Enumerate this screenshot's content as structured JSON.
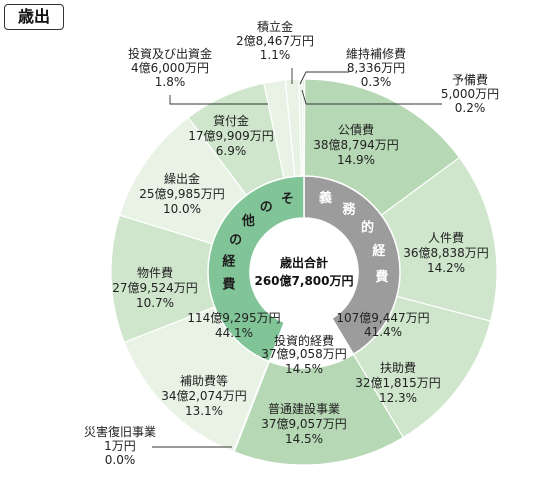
{
  "title": "歳出",
  "chart_data": {
    "type": "pie",
    "variant": "donut-two-ring",
    "center": {
      "line1": "歳出合計",
      "line2": "260億7,800万円"
    },
    "outer": [
      {
        "name": "公債費",
        "amount": "38億8,794万円",
        "percent": "14.9%",
        "value": 14.9,
        "color": "#b6d8b4"
      },
      {
        "name": "人件費",
        "amount": "36億8,838万円",
        "percent": "14.2%",
        "value": 14.2,
        "color": "#cfe6cc"
      },
      {
        "name": "扶助費",
        "amount": "32億1,815万円",
        "percent": "12.3%",
        "value": 12.3,
        "color": "#cfe6cc"
      },
      {
        "name": "普通建設事業",
        "amount": "37億9,057万円",
        "percent": "14.5%",
        "value": 14.5,
        "color": "#b6d8b4"
      },
      {
        "name": "災害復旧事業",
        "amount": "1万円",
        "percent": "0.0%",
        "value": 0.0,
        "color": "#b6d8b4"
      },
      {
        "name": "補助費等",
        "amount": "34億2,074万円",
        "percent": "13.1%",
        "value": 13.1,
        "color": "#e8f3e6"
      },
      {
        "name": "物件費",
        "amount": "27億9,524万円",
        "percent": "10.7%",
        "value": 10.7,
        "color": "#cfe6cc"
      },
      {
        "name": "繰出金",
        "amount": "25億9,985万円",
        "percent": "10.0%",
        "value": 10.0,
        "color": "#e8f3e6"
      },
      {
        "name": "貸付金",
        "amount": "17億9,909万円",
        "percent": "6.9%",
        "value": 6.9,
        "color": "#cfe6cc"
      },
      {
        "name": "投資及び出資金",
        "amount": "4億6,000万円",
        "percent": "1.8%",
        "value": 1.8,
        "color": "#e8f3e6"
      },
      {
        "name": "積立金",
        "amount": "2億8,467万円",
        "percent": "1.1%",
        "value": 1.1,
        "color": "#e8f3e6"
      },
      {
        "name": "維持補修費",
        "amount": "8,336万円",
        "percent": "0.3%",
        "value": 0.3,
        "color": "#e8f3e6"
      },
      {
        "name": "予備費",
        "amount": "5,000万円",
        "percent": "0.2%",
        "value": 0.2,
        "color": "#e8f3e6"
      }
    ],
    "inner": [
      {
        "name": "義務的経費",
        "chars": [
          "義",
          "務",
          "的",
          "経",
          "費"
        ],
        "amount": "107億9,447万円",
        "percent": "41.4%",
        "value": 41.4,
        "color": "#9c9c9c"
      },
      {
        "name": "投資的経費",
        "amount": "37億9,058万円",
        "percent": "14.5%",
        "value": 14.5,
        "color": "#ffffff"
      },
      {
        "name": "その他の経費",
        "chars": [
          "そ",
          "の",
          "他",
          "の",
          "経",
          "費"
        ],
        "amount": "114億9,295万円",
        "percent": "44.1%",
        "value": 44.1,
        "color": "#80c498"
      }
    ]
  }
}
